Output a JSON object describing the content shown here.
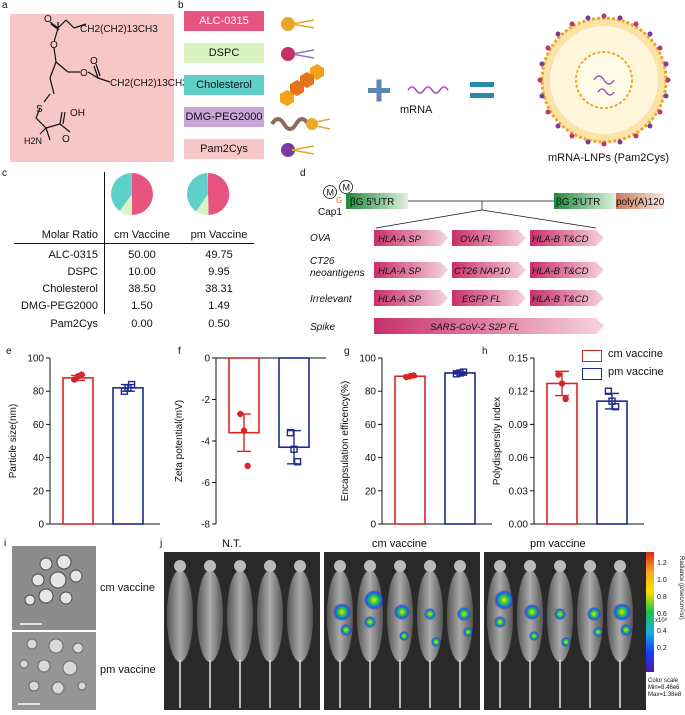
{
  "panels": {
    "a": "a",
    "b": "b",
    "c": "c",
    "d": "d",
    "e": "e",
    "f": "f",
    "g": "g",
    "h": "h",
    "i": "i",
    "j": "j"
  },
  "panel_a": {
    "formula_top": "CH2(CH2)13CH3",
    "formula_mid": "CH2(CH2)13CH3",
    "atoms": {
      "o1": "O",
      "o2": "O",
      "o3": "O",
      "o4": "O",
      "s": "S",
      "nh2": "H2N",
      "oh": "OH",
      "o5": "O"
    }
  },
  "panel_b": {
    "lipids": [
      {
        "label": "ALC-0315",
        "color": "#e75480",
        "text_color": "#fff"
      },
      {
        "label": "DSPC",
        "color": "#d9f3c2",
        "text_color": "#111"
      },
      {
        "label": "Cholesterol",
        "color": "#5fd0c9",
        "text_color": "#111"
      },
      {
        "label": "DMG-PEG2000",
        "color": "#c9a5d8",
        "text_color": "#111"
      },
      {
        "label": "Pam2Cys",
        "color": "#f7c6c7",
        "text_color": "#111"
      }
    ],
    "mrna_label": "mRNA",
    "lnp_label": "mRNA-LNPs (Pam2Cys)",
    "plus": "+",
    "equals": "="
  },
  "panel_c": {
    "header_row": "Molar Ratio",
    "columns": [
      "cm Vaccine",
      "pm Vaccine"
    ],
    "rows": [
      {
        "name": "ALC-0315",
        "cm": "50.00",
        "pm": "49.75"
      },
      {
        "name": "DSPC",
        "cm": "10.00",
        "pm": "9.95"
      },
      {
        "name": "Cholesterol",
        "cm": "38.50",
        "pm": "38.31"
      },
      {
        "name": "DMG-PEG2000",
        "cm": "1.50",
        "pm": "1.49"
      },
      {
        "name": "Pam2Cys",
        "cm": "0.00",
        "pm": "0.50"
      }
    ],
    "pie_colors": [
      "#e75480",
      "#d9f3c2",
      "#5fd0c9",
      "#c9a5d8",
      "#f7c6c7"
    ]
  },
  "panel_d": {
    "cap": "Cap1",
    "cap_m1": "M",
    "cap_m2": "M",
    "cap_g": "G",
    "utr5": "βG 5'UTR",
    "utr3": "βG 3'UTR",
    "polya": "poly(A)120",
    "constructs": [
      {
        "name": "OVA",
        "parts": [
          "HLA-A SP",
          "OVA FL",
          "HLA-B T&CD"
        ]
      },
      {
        "name": "CT26\nneoantigens",
        "name1": "CT26",
        "name2": "neoantigens",
        "parts": [
          "HLA-A SP",
          "CT26 NAP10",
          "HLA-B T&CD"
        ]
      },
      {
        "name": "Irrelevant",
        "parts": [
          "HLA-A SP",
          "EGFP FL",
          "HLA-B T&CD"
        ]
      },
      {
        "name": "Spike",
        "parts": [
          "SARS-CoV-2 S2P FL"
        ]
      }
    ]
  },
  "chart_data": [
    {
      "type": "bar",
      "panel": "e",
      "ylabel": "Particle size(nm)",
      "ylim": [
        0,
        100
      ],
      "yticks": [
        0,
        20,
        40,
        60,
        80,
        100
      ],
      "series": [
        {
          "name": "cm vaccine",
          "mean": 88,
          "err": 1.5,
          "points": [
            87,
            89,
            90
          ]
        },
        {
          "name": "pm vaccine",
          "mean": 82,
          "err": 2,
          "points": [
            80,
            82,
            84
          ]
        }
      ]
    },
    {
      "type": "bar",
      "panel": "f",
      "ylabel": "Zeta potential(mV)",
      "ylim": [
        -8,
        0
      ],
      "yticks": [
        0,
        -2,
        -4,
        -6,
        -8
      ],
      "series": [
        {
          "name": "cm vaccine",
          "mean": -3.6,
          "err": 0.9,
          "points": [
            -2.7,
            -3.5,
            -5.2
          ]
        },
        {
          "name": "pm vaccine",
          "mean": -4.3,
          "err": 0.8,
          "points": [
            -3.6,
            -4.4,
            -5.0
          ]
        }
      ]
    },
    {
      "type": "bar",
      "panel": "g",
      "ylabel": "Encapsulation efficency(%)",
      "ylim": [
        0,
        100
      ],
      "yticks": [
        0,
        20,
        40,
        60,
        80,
        100
      ],
      "series": [
        {
          "name": "cm vaccine",
          "mean": 89,
          "err": 0.5,
          "points": [
            88.5,
            89,
            89.5
          ]
        },
        {
          "name": "pm vaccine",
          "mean": 91,
          "err": 0.6,
          "points": [
            90.5,
            91,
            91.5
          ]
        }
      ]
    },
    {
      "type": "bar",
      "panel": "h",
      "ylabel": "Polydispersity index",
      "ylim": [
        0,
        0.15
      ],
      "yticks": [
        "0.00",
        "0.03",
        "0.06",
        "0.09",
        "0.12",
        "0.15"
      ],
      "series": [
        {
          "name": "cm vaccine",
          "mean": 0.127,
          "err": 0.011,
          "points": [
            0.135,
            0.127,
            0.113
          ]
        },
        {
          "name": "pm vaccine",
          "mean": 0.111,
          "err": 0.007,
          "points": [
            0.12,
            0.111,
            0.106
          ]
        }
      ]
    }
  ],
  "legend": [
    {
      "label": "cm vaccine",
      "color": "#d62728"
    },
    {
      "label": "pm vaccine",
      "color": "#1f2a8a"
    }
  ],
  "series_colors": {
    "cm": "#d62728",
    "pm": "#1f2a8a"
  },
  "panel_i": {
    "labels": [
      "cm vaccine",
      "pm vaccine"
    ]
  },
  "panel_j": {
    "groups": [
      "N.T.",
      "cm vaccine",
      "pm vaccine"
    ],
    "colorbar_ticks": [
      "1.2",
      "1.0",
      "0.8",
      "0.6",
      "0.4",
      "0.2"
    ],
    "colorbar_exp": "x10⁸",
    "colorbar_label": "Radiance (p/sec/cm²/sr)",
    "scale_title": "Color scale",
    "scale_min": "Min=8.46e6",
    "scale_max": "Max=1.38e8"
  }
}
